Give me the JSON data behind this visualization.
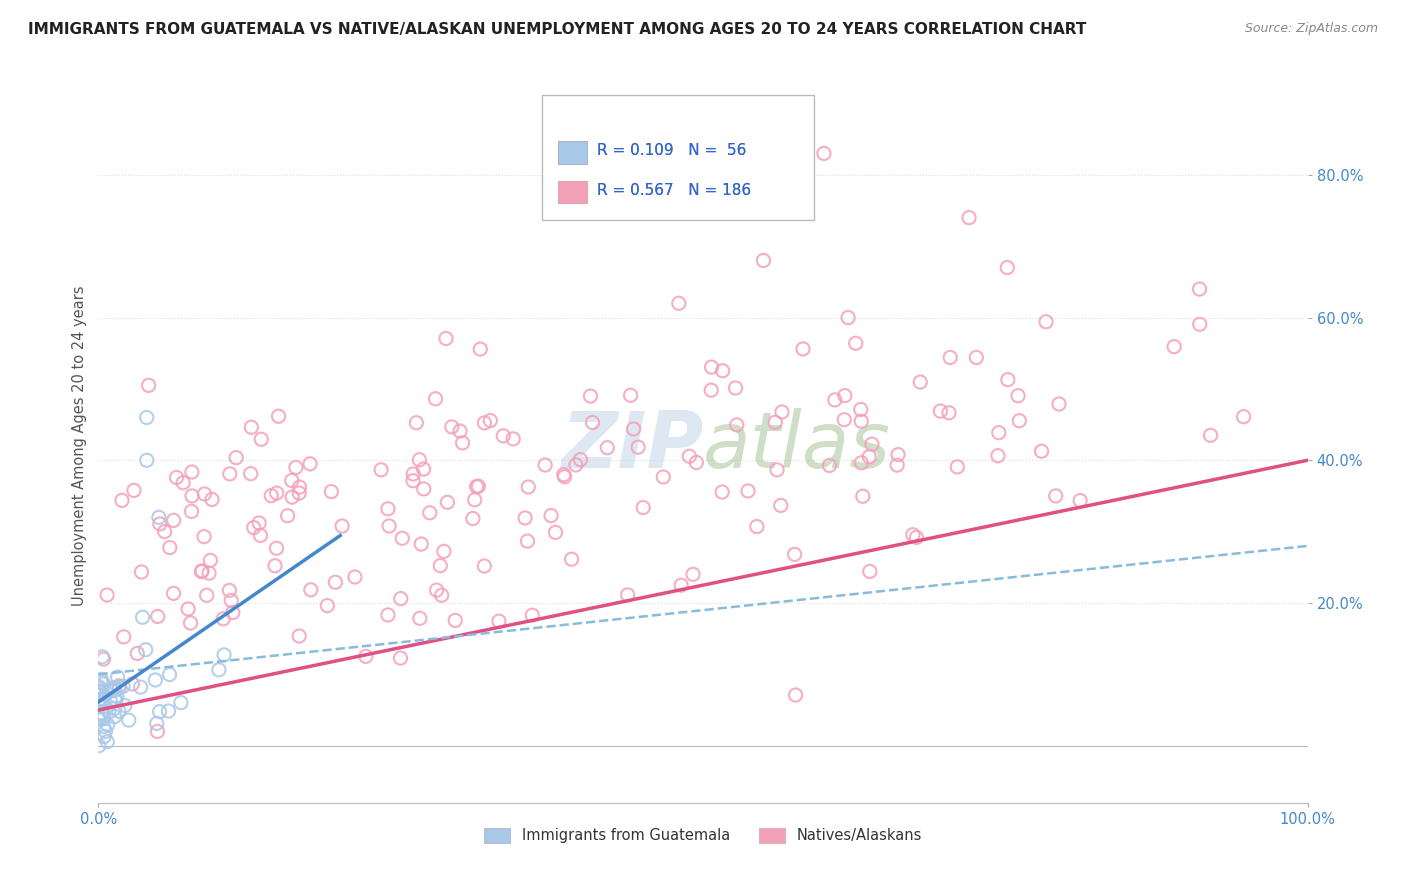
{
  "title": "IMMIGRANTS FROM GUATEMALA VS NATIVE/ALASKAN UNEMPLOYMENT AMONG AGES 20 TO 24 YEARS CORRELATION CHART",
  "source": "Source: ZipAtlas.com",
  "ylabel": "Unemployment Among Ages 20 to 24 years",
  "xlim": [
    0.0,
    1.0
  ],
  "ylim": [
    -0.08,
    0.92
  ],
  "ytick_labels": [
    "20.0%",
    "40.0%",
    "60.0%",
    "80.0%"
  ],
  "ytick_positions": [
    0.2,
    0.4,
    0.6,
    0.8
  ],
  "watermark_text": "ZIPatlas",
  "blue_scatter_color": "#a8c8e8",
  "pink_scatter_color": "#f4a0b8",
  "blue_line_color": "#4488cc",
  "blue_dashed_color": "#88bbdd",
  "pink_line_color": "#e05080",
  "grid_color": "#dddddd",
  "background_color": "#ffffff",
  "R_blue": 0.109,
  "N_blue": 56,
  "R_pink": 0.567,
  "N_pink": 186,
  "seed": 42,
  "blue_legend_color": "#a8c8e8",
  "pink_legend_color": "#f4a0b8",
  "legend_text_color": "#3366cc",
  "ytick_color": "#4488cc",
  "xtick_color": "#4488cc"
}
